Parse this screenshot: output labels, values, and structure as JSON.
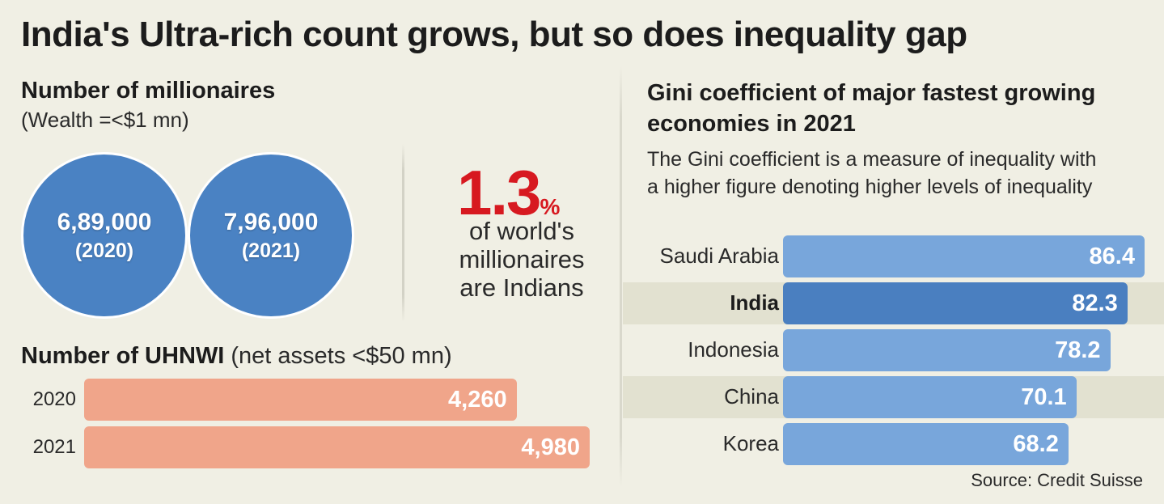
{
  "title": "India's Ultra-rich count grows, but so does inequality gap",
  "millionaires": {
    "title": "Number of millionaires",
    "subtitle": "(Wealth =<$1 mn)",
    "items": [
      {
        "value": "6,89,000",
        "year": "(2020)"
      },
      {
        "value": "7,96,000",
        "year": "(2021)"
      }
    ]
  },
  "stat": {
    "number": "1.3",
    "unit": "%",
    "lines": [
      "of world's",
      "millionaires",
      "are Indians"
    ]
  },
  "uhnwi": {
    "title_bold": "Number of UHNWI",
    "title_light": " (net assets <$50 mn)"
  },
  "gini": {
    "title": "Gini coefficient of major fastest growing economies in 2021",
    "description": "The Gini coefficient is a measure of inequality with a higher figure denoting higher levels of inequality"
  },
  "source": "Source: Credit Suisse",
  "colors": {
    "circle_blue": "#4a82c3",
    "salmon": "#f0a58a",
    "gini_bar": "#78a6db",
    "gini_highlight": "#4a7fc0",
    "accent_red": "#d71920",
    "background": "#f0efe4"
  },
  "chart_data": [
    {
      "type": "bar",
      "title": "Number of UHNWI (net assets <$50 mn)",
      "orientation": "horizontal",
      "categories": [
        "2020",
        "2021"
      ],
      "values": [
        4260,
        4980
      ],
      "value_labels": [
        "4,260",
        "4,980"
      ],
      "xlim": [
        0,
        5000
      ]
    },
    {
      "type": "bar",
      "title": "Gini coefficient of major fastest growing economies in 2021",
      "orientation": "horizontal",
      "categories": [
        "Saudi Arabia",
        "India",
        "Indonesia",
        "China",
        "Korea"
      ],
      "values": [
        86.4,
        82.3,
        78.2,
        70.1,
        68.2
      ],
      "value_labels": [
        "86.4",
        "82.3",
        "78.2",
        "70.1",
        "68.2"
      ],
      "highlight": "India",
      "xlim": [
        0,
        100
      ]
    }
  ]
}
